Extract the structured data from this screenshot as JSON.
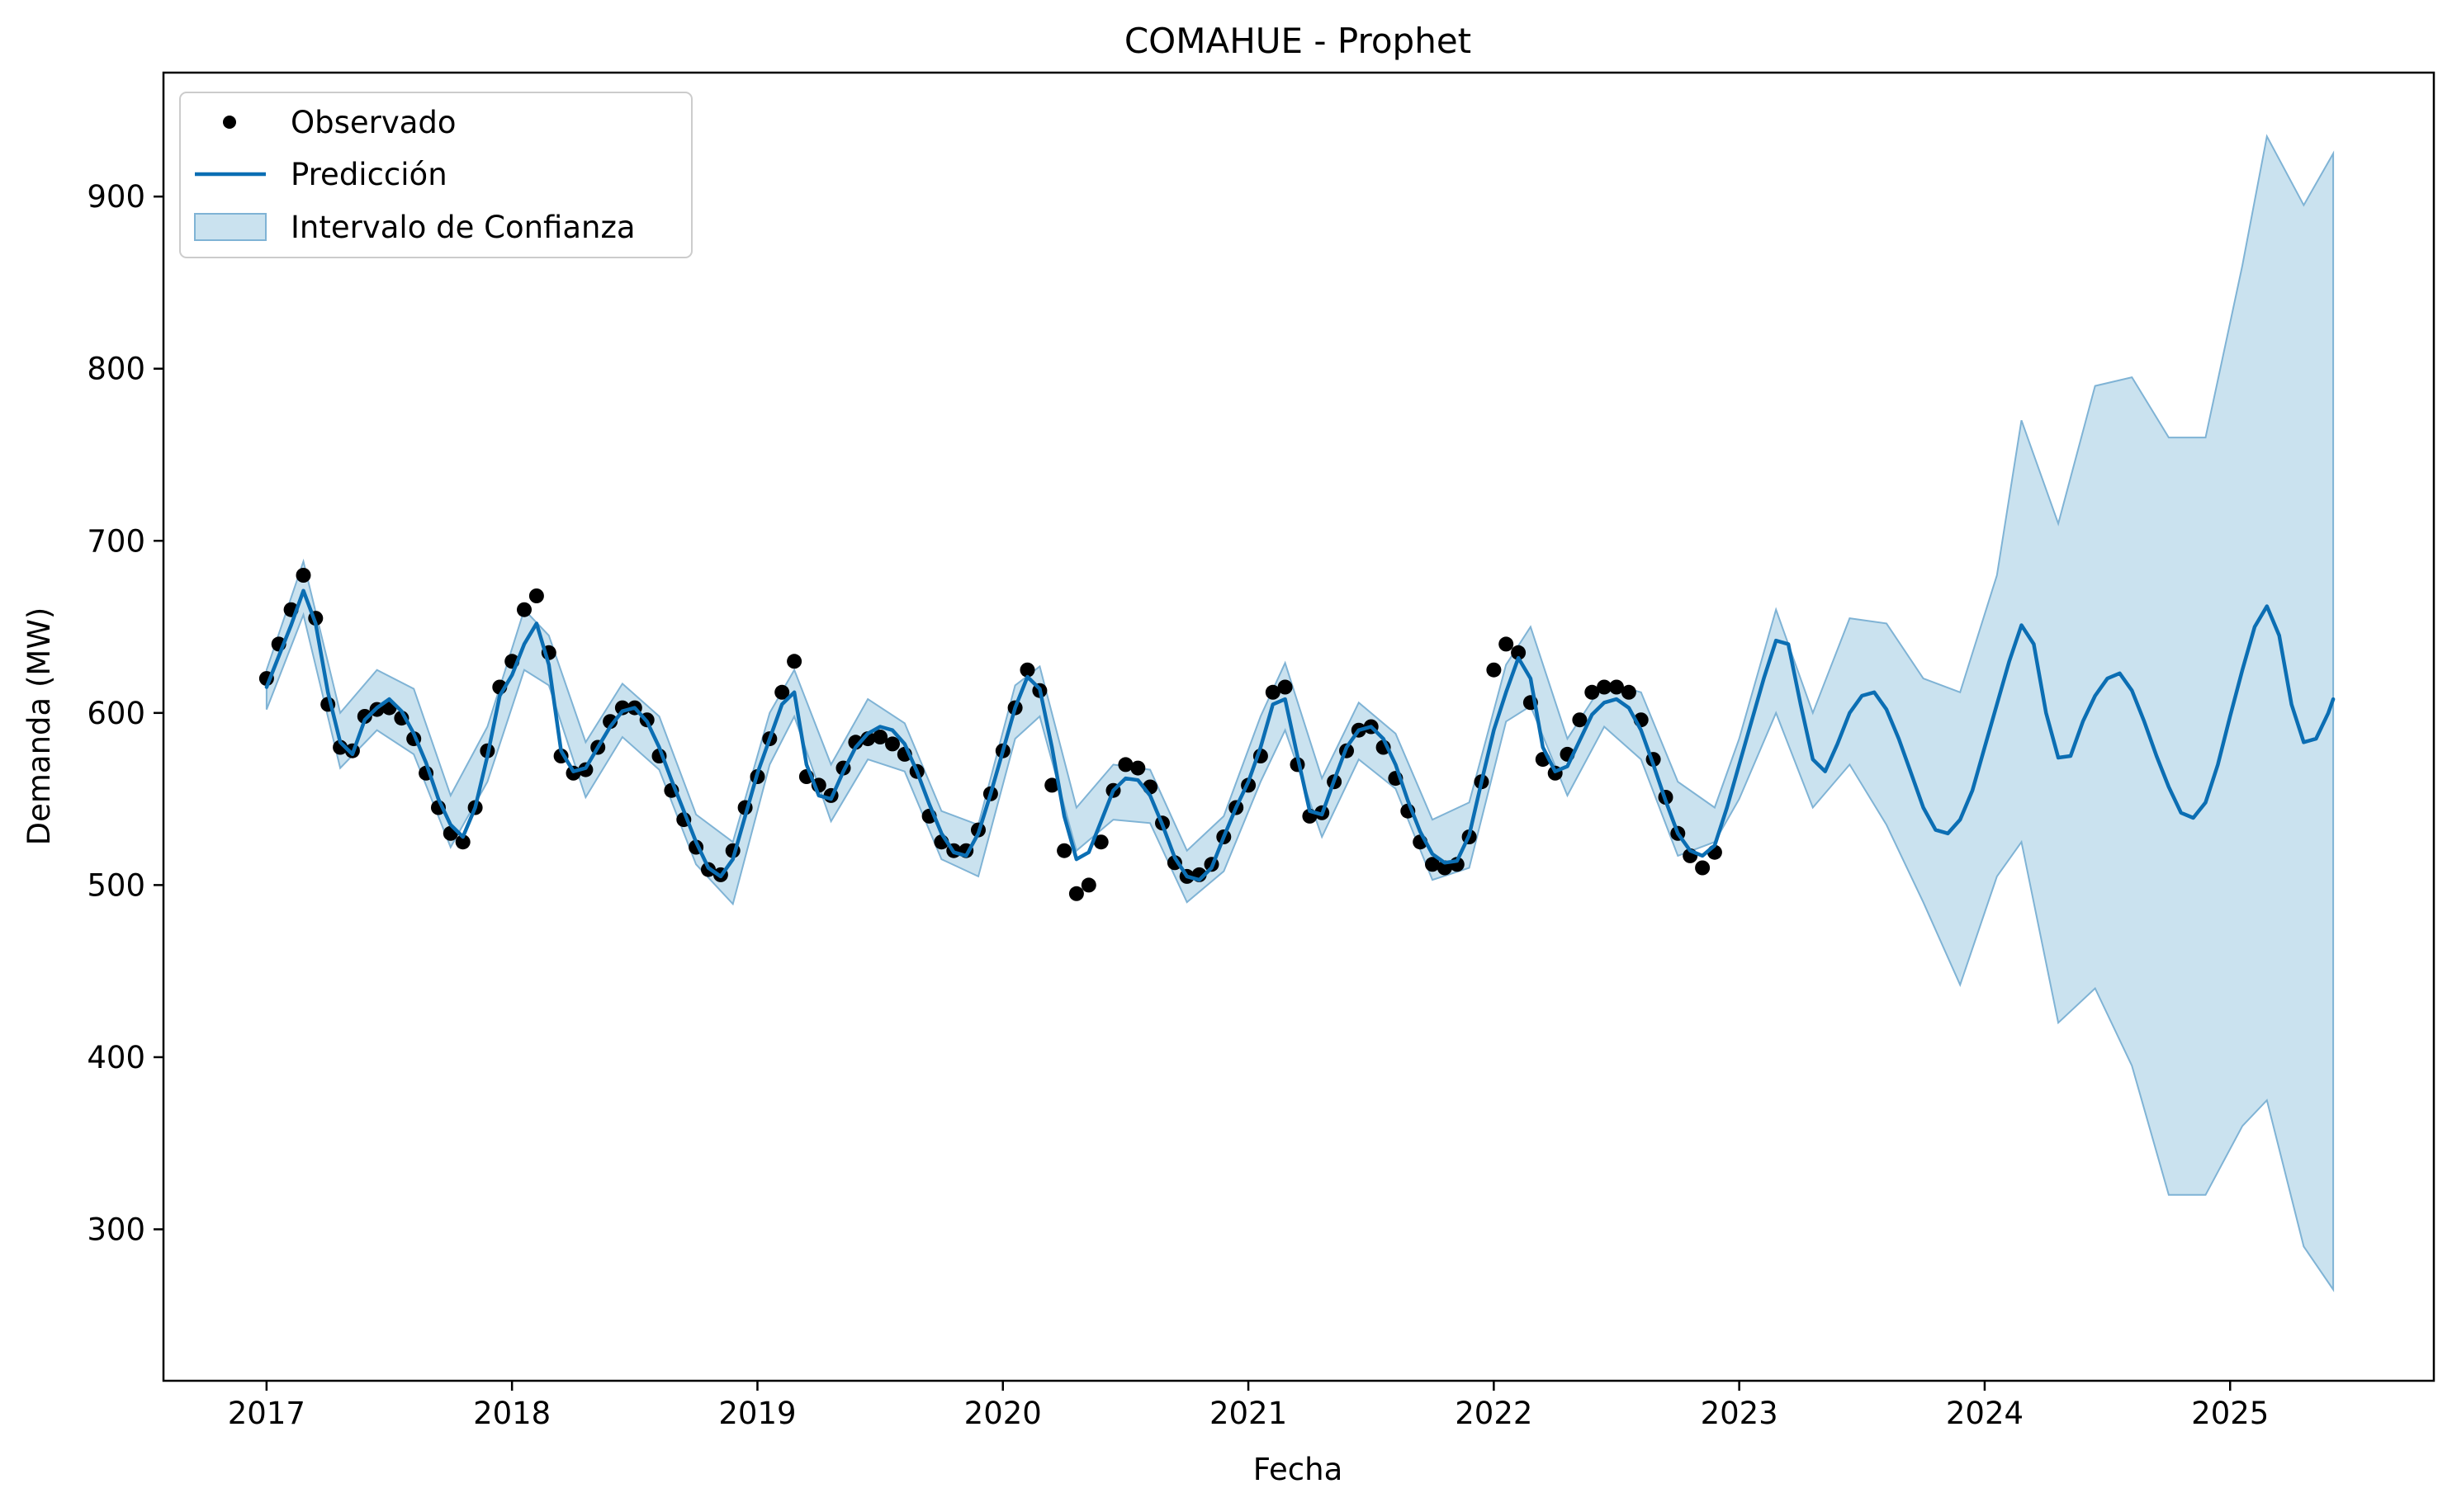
{
  "chart_data": {
    "type": "line",
    "title": "COMAHUE - Prophet",
    "xlabel": "Fecha",
    "ylabel": "Demanda (MW)",
    "xlim": [
      2016.58,
      2025.83
    ],
    "ylim": [
      212,
      972
    ],
    "x_ticks": [
      2017,
      2018,
      2019,
      2020,
      2021,
      2022,
      2023,
      2024,
      2025
    ],
    "x_tick_labels": [
      "2017",
      "2018",
      "2019",
      "2020",
      "2021",
      "2022",
      "2023",
      "2024",
      "2025"
    ],
    "y_ticks": [
      300,
      400,
      500,
      600,
      700,
      800,
      900
    ],
    "y_tick_labels": [
      "300",
      "400",
      "500",
      "600",
      "700",
      "800",
      "900"
    ],
    "grid": false,
    "legend": {
      "position": "top-left",
      "entries": [
        "Observado",
        "Predicción",
        "Intervalo de Confianza"
      ]
    },
    "colors": {
      "observed": "#000000",
      "prediction": "#0b6eb3",
      "interval_fill": "#9ecae1",
      "interval_edge": "#7fb3d5"
    },
    "observed_range": [
      2017.0,
      2022.92
    ],
    "series": [
      {
        "name": "Predicción",
        "x": [
          2017.0,
          2017.05,
          2017.1,
          2017.15,
          2017.2,
          2017.25,
          2017.3,
          2017.35,
          2017.4,
          2017.45,
          2017.5,
          2017.55,
          2017.6,
          2017.65,
          2017.7,
          2017.75,
          2017.8,
          2017.85,
          2017.9,
          2017.95,
          2018.0,
          2018.05,
          2018.1,
          2018.15,
          2018.2,
          2018.25,
          2018.3,
          2018.35,
          2018.4,
          2018.45,
          2018.5,
          2018.55,
          2018.6,
          2018.65,
          2018.7,
          2018.75,
          2018.8,
          2018.85,
          2018.9,
          2018.95,
          2019.0,
          2019.05,
          2019.1,
          2019.15,
          2019.2,
          2019.25,
          2019.3,
          2019.35,
          2019.4,
          2019.45,
          2019.5,
          2019.55,
          2019.6,
          2019.65,
          2019.7,
          2019.75,
          2019.8,
          2019.85,
          2019.9,
          2019.95,
          2020.0,
          2020.05,
          2020.1,
          2020.15,
          2020.2,
          2020.25,
          2020.3,
          2020.35,
          2020.4,
          2020.45,
          2020.5,
          2020.55,
          2020.6,
          2020.65,
          2020.7,
          2020.75,
          2020.8,
          2020.85,
          2020.9,
          2020.95,
          2021.0,
          2021.05,
          2021.1,
          2021.15,
          2021.2,
          2021.25,
          2021.3,
          2021.35,
          2021.4,
          2021.45,
          2021.5,
          2021.55,
          2021.6,
          2021.65,
          2021.7,
          2021.75,
          2021.8,
          2021.85,
          2021.9,
          2021.95,
          2022.0,
          2022.05,
          2022.1,
          2022.15,
          2022.2,
          2022.25,
          2022.3,
          2022.35,
          2022.4,
          2022.45,
          2022.5,
          2022.55,
          2022.6,
          2022.65,
          2022.7,
          2022.75,
          2022.8,
          2022.85,
          2022.9,
          2022.95,
          2023.0,
          2023.05,
          2023.1,
          2023.15,
          2023.2,
          2023.25,
          2023.3,
          2023.35,
          2023.4,
          2023.45,
          2023.5,
          2023.55,
          2023.6,
          2023.65,
          2023.7,
          2023.75,
          2023.8,
          2023.85,
          2023.9,
          2023.95,
          2024.0,
          2024.05,
          2024.1,
          2024.15,
          2024.2,
          2024.25,
          2024.3,
          2024.35,
          2024.4,
          2024.45,
          2024.5,
          2024.55,
          2024.6,
          2024.65,
          2024.7,
          2024.75,
          2024.8,
          2024.85,
          2024.9,
          2024.95,
          2025.0,
          2025.05,
          2025.1,
          2025.15,
          2025.2,
          2025.25,
          2025.3,
          2025.35,
          2025.4,
          2025.42
        ],
        "y": [
          615,
          633,
          651,
          671,
          652,
          612,
          583,
          576,
          596,
          603,
          608,
          601,
          588,
          571,
          550,
          535,
          528,
          545,
          575,
          610,
          622,
          640,
          652,
          628,
          578,
          566,
          568,
          580,
          592,
          601,
          603,
          595,
          580,
          561,
          543,
          525,
          510,
          505,
          515,
          540,
          565,
          585,
          605,
          612,
          570,
          552,
          550,
          566,
          580,
          588,
          592,
          590,
          582,
          566,
          547,
          530,
          519,
          517,
          530,
          553,
          578,
          603,
          621,
          614,
          580,
          540,
          515,
          519,
          537,
          555,
          562,
          561,
          552,
          535,
          516,
          505,
          503,
          510,
          528,
          545,
          560,
          580,
          605,
          608,
          575,
          543,
          541,
          561,
          580,
          590,
          592,
          585,
          570,
          549,
          531,
          518,
          513,
          514,
          529,
          560,
          590,
          612,
          632,
          620,
          580,
          566,
          569,
          584,
          599,
          606,
          608,
          603,
          590,
          570,
          549,
          530,
          520,
          517,
          523,
          545,
          570,
          595,
          620,
          642,
          640,
          605,
          573,
          566,
          582,
          600,
          610,
          612,
          602,
          585,
          565,
          545,
          532,
          530,
          538,
          555,
          580,
          605,
          630,
          651,
          640,
          600,
          574,
          575,
          595,
          610,
          620,
          623,
          613,
          595,
          575,
          557,
          542,
          539,
          548,
          570,
          598,
          625,
          650,
          662,
          645,
          605,
          583,
          585,
          600,
          608
        ]
      },
      {
        "name": "Observado",
        "x": [
          2017.0,
          2017.05,
          2017.1,
          2017.15,
          2017.2,
          2017.25,
          2017.3,
          2017.35,
          2017.4,
          2017.45,
          2017.5,
          2017.55,
          2017.6,
          2017.65,
          2017.7,
          2017.75,
          2017.8,
          2017.85,
          2017.9,
          2017.95,
          2018.0,
          2018.05,
          2018.1,
          2018.15,
          2018.2,
          2018.25,
          2018.3,
          2018.35,
          2018.4,
          2018.45,
          2018.5,
          2018.55,
          2018.6,
          2018.65,
          2018.7,
          2018.75,
          2018.8,
          2018.85,
          2018.9,
          2018.95,
          2019.0,
          2019.05,
          2019.1,
          2019.15,
          2019.2,
          2019.25,
          2019.3,
          2019.35,
          2019.4,
          2019.45,
          2019.5,
          2019.55,
          2019.6,
          2019.65,
          2019.7,
          2019.75,
          2019.8,
          2019.85,
          2019.9,
          2019.95,
          2020.0,
          2020.05,
          2020.1,
          2020.15,
          2020.2,
          2020.25,
          2020.3,
          2020.35,
          2020.4,
          2020.45,
          2020.5,
          2020.55,
          2020.6,
          2020.65,
          2020.7,
          2020.75,
          2020.8,
          2020.85,
          2020.9,
          2020.95,
          2021.0,
          2021.05,
          2021.1,
          2021.15,
          2021.2,
          2021.25,
          2021.3,
          2021.35,
          2021.4,
          2021.45,
          2021.5,
          2021.55,
          2021.6,
          2021.65,
          2021.7,
          2021.75,
          2021.8,
          2021.85,
          2021.9,
          2021.95,
          2022.0,
          2022.05,
          2022.1,
          2022.15,
          2022.2,
          2022.25,
          2022.3,
          2022.35,
          2022.4,
          2022.45,
          2022.5,
          2022.55,
          2022.6,
          2022.65,
          2022.7,
          2022.75,
          2022.8,
          2022.85,
          2022.9
        ],
        "y": [
          620,
          640,
          660,
          680,
          655,
          605,
          580,
          578,
          598,
          602,
          603,
          597,
          585,
          565,
          545,
          530,
          525,
          545,
          578,
          615,
          630,
          660,
          668,
          635,
          575,
          565,
          567,
          580,
          595,
          603,
          603,
          596,
          575,
          555,
          538,
          522,
          509,
          506,
          520,
          545,
          563,
          585,
          612,
          630,
          563,
          558,
          552,
          568,
          583,
          585,
          586,
          582,
          576,
          566,
          540,
          525,
          520,
          520,
          532,
          553,
          578,
          603,
          625,
          613,
          558,
          520,
          495,
          500,
          525,
          555,
          570,
          568,
          557,
          536,
          513,
          505,
          506,
          512,
          528,
          545,
          558,
          575,
          612,
          615,
          570,
          540,
          542,
          560,
          578,
          590,
          592,
          580,
          562,
          543,
          525,
          512,
          510,
          512,
          528,
          560,
          625,
          640,
          635,
          606,
          573,
          565,
          576,
          596,
          612,
          615,
          615,
          612,
          596,
          573,
          551,
          530,
          517,
          510,
          519
        ]
      },
      {
        "name": "Intervalo de Confianza",
        "x": [
          2017.0,
          2017.15,
          2017.3,
          2017.45,
          2017.6,
          2017.75,
          2017.9,
          2018.05,
          2018.15,
          2018.3,
          2018.45,
          2018.6,
          2018.75,
          2018.9,
          2019.05,
          2019.15,
          2019.3,
          2019.45,
          2019.6,
          2019.75,
          2019.9,
          2020.05,
          2020.15,
          2020.3,
          2020.45,
          2020.6,
          2020.75,
          2020.9,
          2021.05,
          2021.15,
          2021.3,
          2021.45,
          2021.6,
          2021.75,
          2021.9,
          2022.05,
          2022.15,
          2022.3,
          2022.45,
          2022.6,
          2022.75,
          2022.9,
          2023.0,
          2023.15,
          2023.3,
          2023.45,
          2023.6,
          2023.75,
          2023.9,
          2024.05,
          2024.15,
          2024.3,
          2024.45,
          2024.6,
          2024.75,
          2024.9,
          2025.05,
          2025.15,
          2025.3,
          2025.42
        ],
        "lower": [
          602,
          657,
          568,
          590,
          576,
          522,
          560,
          625,
          616,
          551,
          586,
          567,
          512,
          489,
          570,
          598,
          537,
          573,
          566,
          515,
          505,
          585,
          598,
          520,
          538,
          536,
          490,
          508,
          560,
          590,
          528,
          573,
          556,
          503,
          510,
          595,
          604,
          552,
          592,
          573,
          517,
          525,
          550,
          600,
          545,
          570,
          535,
          490,
          442,
          505,
          525,
          420,
          440,
          395,
          320,
          320,
          360,
          375,
          290,
          265
        ],
        "upper": [
          625,
          688,
          600,
          625,
          614,
          552,
          592,
          660,
          645,
          583,
          617,
          598,
          541,
          525,
          600,
          625,
          570,
          608,
          594,
          543,
          535,
          616,
          627,
          545,
          570,
          567,
          520,
          540,
          598,
          629,
          562,
          606,
          588,
          538,
          548,
          628,
          650,
          585,
          618,
          612,
          560,
          545,
          585,
          660,
          600,
          655,
          652,
          620,
          612,
          680,
          770,
          710,
          790,
          795,
          760,
          760,
          860,
          935,
          895,
          925
        ]
      }
    ]
  }
}
